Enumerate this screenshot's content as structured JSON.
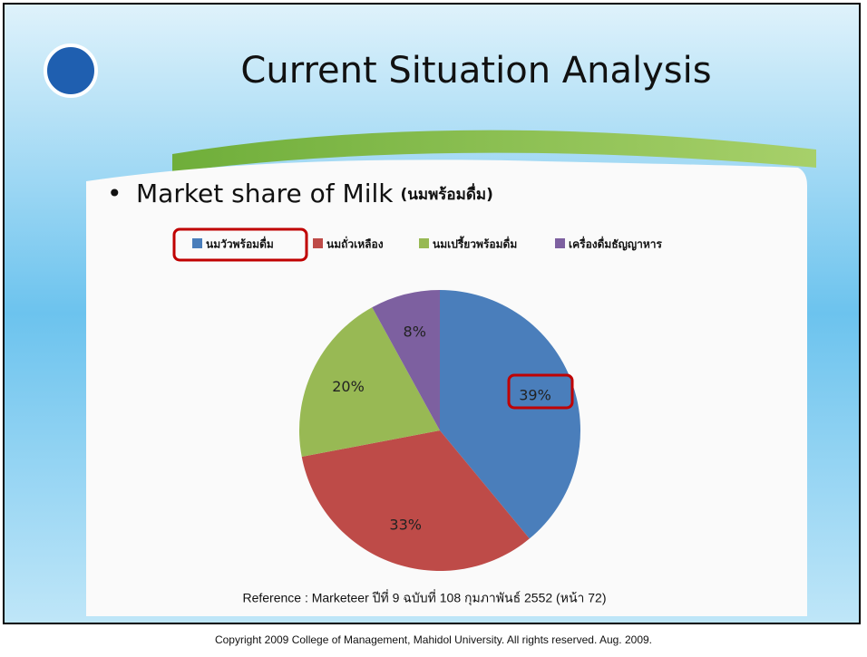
{
  "header": {
    "title": "Current Situation Analysis",
    "bullet": "Market share of Milk",
    "bullet_note": "(นมพร้อมดื่ม)"
  },
  "chart_data": {
    "type": "pie",
    "categories": [
      "นมวัวพร้อมดื่ม",
      "นมถั่วเหลือง",
      "นมเปรี้ยวพร้อมดื่ม",
      "เครื่องดื่มธัญญาหาร"
    ],
    "values": [
      39,
      33,
      20,
      8
    ],
    "value_labels": [
      "39%",
      "33%",
      "20%",
      "8%"
    ],
    "colors": [
      "#4a7ebb",
      "#be4b48",
      "#98b954",
      "#7d60a0"
    ],
    "legend": "top"
  },
  "footer": {
    "reference": "Reference : Marketeer ปีที่ 9 ฉบับที่ 108 กุมภาพันธ์ 2552 (หน้า 72)",
    "copyright": "Copyright 2009 College of Management, Mahidol University. All rights reserved. Aug. 2009."
  }
}
